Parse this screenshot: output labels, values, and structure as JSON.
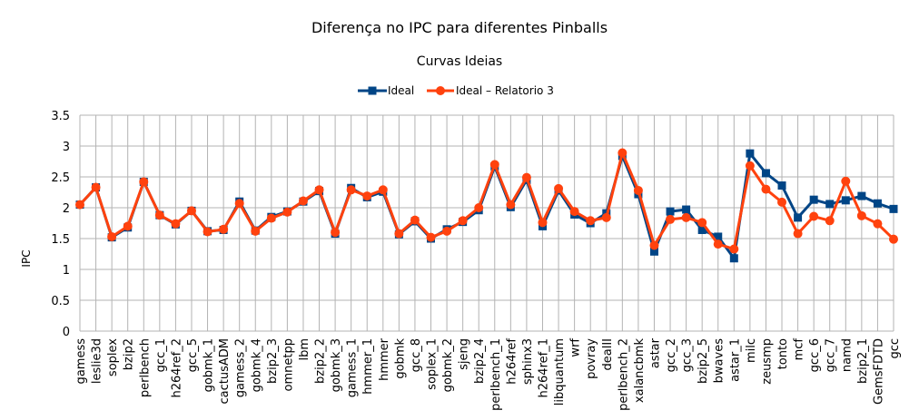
{
  "chart_data": {
    "type": "line",
    "title": "Diferença no IPC para diferentes Pinballs",
    "subtitle": "Curvas Ideias",
    "xlabel": "",
    "ylabel": "IPC",
    "ylim": [
      0,
      3.5
    ],
    "yticks": [
      0,
      0.5,
      1,
      1.5,
      2,
      2.5,
      3,
      3.5
    ],
    "ytick_labels": [
      "0",
      "0.5",
      "1",
      "1.5",
      "2",
      "2.5",
      "3",
      "3.5"
    ],
    "grid": true,
    "legend_position": "top-center",
    "categories": [
      "gamess",
      "leslie3d",
      "soplex",
      "bzip2",
      "perlbench",
      "gcc_1",
      "h264ref_2",
      "gcc_5",
      "gobmk_1",
      "cactusADM",
      "gamess_2",
      "gobmk_4",
      "bzip2_3",
      "omnetpp",
      "lbm",
      "bzip2_2",
      "gobmk_3",
      "gamess_1",
      "hmmer_1",
      "hmmer",
      "gobmk",
      "gcc_8",
      "soplex_1",
      "gobmk_2",
      "sjeng",
      "bzip2_4",
      "perlbench_1",
      "h264ref",
      "sphinx3",
      "h264ref_1",
      "libquantum",
      "wrf",
      "povray",
      "dealII",
      "perlbench_2",
      "xalancbmk",
      "astar",
      "gcc_2",
      "gcc_3",
      "bzip2_5",
      "bwaves",
      "astar_1",
      "milc",
      "zeusmp",
      "tonto",
      "mcf",
      "gcc_6",
      "gcc_7",
      "namd",
      "bzip2_1",
      "GemsFDTD",
      "gcc"
    ],
    "series": [
      {
        "name": "Ideal",
        "color": "#004586",
        "marker": "square",
        "values": [
          2.05,
          2.33,
          1.52,
          1.68,
          2.42,
          1.88,
          1.73,
          1.95,
          1.62,
          1.64,
          2.1,
          1.63,
          1.85,
          1.94,
          2.1,
          2.27,
          1.58,
          2.32,
          2.17,
          2.26,
          1.57,
          1.78,
          1.5,
          1.65,
          1.77,
          1.96,
          2.67,
          2.01,
          2.45,
          1.7,
          2.28,
          1.89,
          1.75,
          1.91,
          2.84,
          2.22,
          1.29,
          1.94,
          1.97,
          1.64,
          1.53,
          1.18,
          2.88,
          2.56,
          2.36,
          1.84,
          2.13,
          2.06,
          2.12,
          2.19,
          2.07,
          1.98
        ]
      },
      {
        "name": "Ideal – Relatorio 3",
        "color": "#ff420e",
        "marker": "circle",
        "values": [
          2.05,
          2.33,
          1.53,
          1.7,
          2.42,
          1.88,
          1.74,
          1.95,
          1.61,
          1.65,
          2.07,
          1.62,
          1.83,
          1.93,
          2.11,
          2.29,
          1.6,
          2.29,
          2.19,
          2.29,
          1.58,
          1.8,
          1.52,
          1.62,
          1.79,
          2.0,
          2.7,
          2.05,
          2.49,
          1.76,
          2.31,
          1.94,
          1.79,
          1.84,
          2.89,
          2.28,
          1.39,
          1.81,
          1.84,
          1.76,
          1.41,
          1.33,
          2.68,
          2.3,
          2.09,
          1.58,
          1.86,
          1.79,
          2.43,
          1.87,
          1.74,
          1.49
        ]
      }
    ]
  }
}
